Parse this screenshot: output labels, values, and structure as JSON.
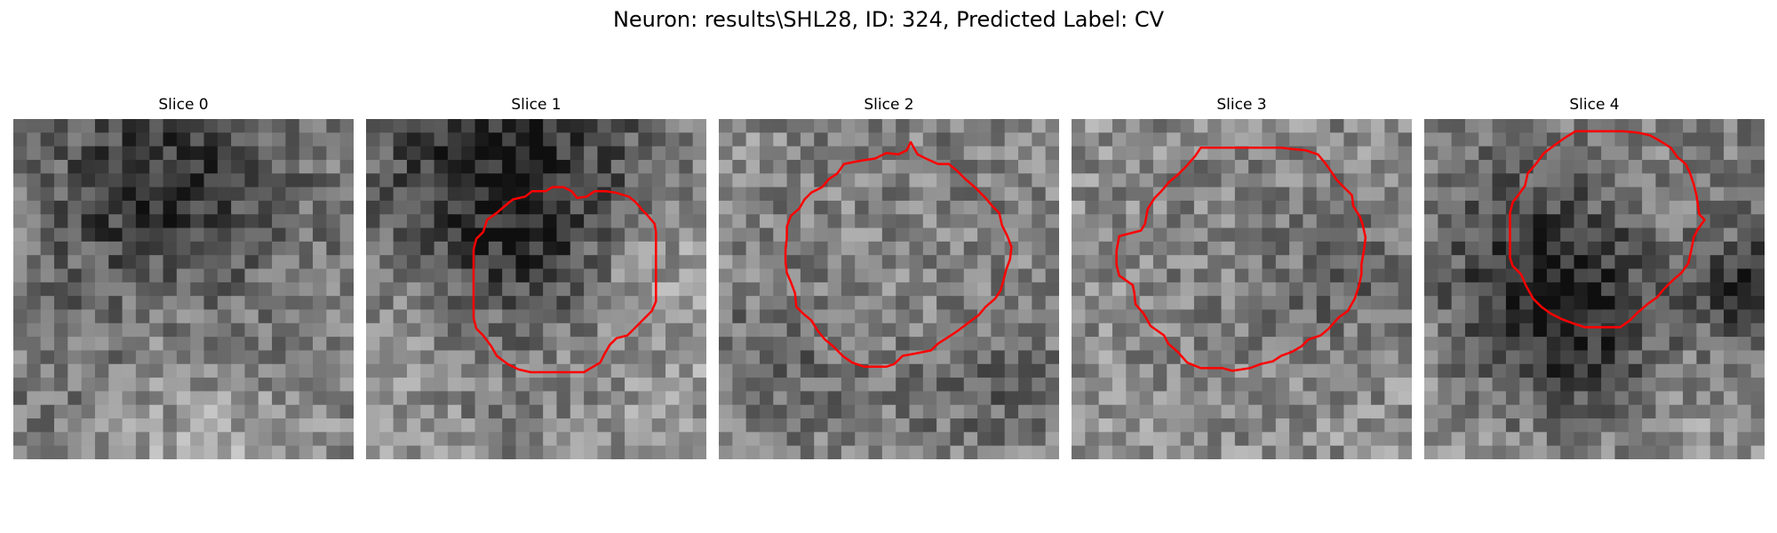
{
  "figure": {
    "title": "Neuron: results\\SHL28, ID: 324, Predicted Label: CV"
  },
  "panels": [
    {
      "title": "Slice 0",
      "dark_blobs": [],
      "contour": []
    },
    {
      "title": "Slice 1",
      "dark_blobs": [],
      "contour": [
        [
          15.5,
          5.8
        ],
        [
          15.1,
          5.3
        ],
        [
          14.5,
          5.0
        ],
        [
          13.7,
          5.0
        ],
        [
          13.2,
          5.3
        ],
        [
          12.2,
          5.3
        ],
        [
          11.7,
          5.7
        ],
        [
          10.8,
          5.9
        ],
        [
          10.3,
          6.3
        ],
        [
          9.6,
          6.9
        ],
        [
          8.9,
          7.4
        ],
        [
          8.6,
          8.3
        ],
        [
          8.1,
          8.8
        ],
        [
          7.9,
          9.6
        ],
        [
          7.9,
          10.5
        ],
        [
          7.9,
          11.3
        ],
        [
          7.9,
          12.6
        ],
        [
          7.9,
          14.1
        ],
        [
          7.9,
          14.6
        ],
        [
          8.1,
          15.4
        ],
        [
          8.6,
          15.9
        ],
        [
          9.2,
          16.7
        ],
        [
          9.6,
          17.4
        ],
        [
          10.4,
          18.0
        ],
        [
          11.2,
          18.4
        ],
        [
          12.1,
          18.6
        ],
        [
          13.1,
          18.6
        ],
        [
          14.1,
          18.6
        ],
        [
          15.0,
          18.6
        ],
        [
          16.0,
          18.6
        ],
        [
          16.5,
          18.3
        ],
        [
          17.2,
          17.9
        ],
        [
          17.5,
          17.3
        ],
        [
          17.9,
          16.6
        ],
        [
          18.4,
          16.1
        ],
        [
          19.2,
          15.9
        ],
        [
          19.6,
          15.5
        ],
        [
          20.3,
          14.8
        ],
        [
          21.0,
          14.1
        ],
        [
          21.3,
          13.4
        ],
        [
          21.3,
          12.4
        ],
        [
          21.3,
          11.4
        ],
        [
          21.3,
          10.4
        ],
        [
          21.3,
          9.4
        ],
        [
          21.3,
          8.3
        ],
        [
          21.2,
          7.7
        ],
        [
          20.7,
          7.1
        ],
        [
          20.3,
          6.7
        ],
        [
          19.8,
          6.1
        ],
        [
          19.3,
          5.7
        ],
        [
          18.3,
          5.4
        ],
        [
          17.6,
          5.3
        ],
        [
          16.8,
          5.3
        ],
        [
          16.2,
          5.7
        ]
      ]
    },
    {
      "title": "Slice 2",
      "dark_blobs": [],
      "contour": [
        [
          14.1,
          1.7
        ],
        [
          13.8,
          2.3
        ],
        [
          13.2,
          2.6
        ],
        [
          12.3,
          2.5
        ],
        [
          11.5,
          2.9
        ],
        [
          10.2,
          3.1
        ],
        [
          9.2,
          3.3
        ],
        [
          8.7,
          4.0
        ],
        [
          8.1,
          4.4
        ],
        [
          7.6,
          5.0
        ],
        [
          6.8,
          5.4
        ],
        [
          6.3,
          5.9
        ],
        [
          5.9,
          6.6
        ],
        [
          5.3,
          7.1
        ],
        [
          5.0,
          7.9
        ],
        [
          5.0,
          8.7
        ],
        [
          4.9,
          9.6
        ],
        [
          4.9,
          10.5
        ],
        [
          5.0,
          11.3
        ],
        [
          5.3,
          12.0
        ],
        [
          5.6,
          12.8
        ],
        [
          5.7,
          13.8
        ],
        [
          6.2,
          14.3
        ],
        [
          6.8,
          14.8
        ],
        [
          7.3,
          15.6
        ],
        [
          7.8,
          16.2
        ],
        [
          8.4,
          16.7
        ],
        [
          9.1,
          17.4
        ],
        [
          9.8,
          17.9
        ],
        [
          10.7,
          18.2
        ],
        [
          11.6,
          18.2
        ],
        [
          12.3,
          18.2
        ],
        [
          12.9,
          18.0
        ],
        [
          13.5,
          17.4
        ],
        [
          14.6,
          17.2
        ],
        [
          15.6,
          17.0
        ],
        [
          16.1,
          16.5
        ],
        [
          16.9,
          16.0
        ],
        [
          17.5,
          15.6
        ],
        [
          18.3,
          15.0
        ],
        [
          19.1,
          14.4
        ],
        [
          19.6,
          13.8
        ],
        [
          20.3,
          13.2
        ],
        [
          20.7,
          12.6
        ],
        [
          20.9,
          11.9
        ],
        [
          21.1,
          11.1
        ],
        [
          21.4,
          10.3
        ],
        [
          21.5,
          9.4
        ],
        [
          21.2,
          8.6
        ],
        [
          20.8,
          7.8
        ],
        [
          20.6,
          6.9
        ],
        [
          20.1,
          6.4
        ],
        [
          19.6,
          5.8
        ],
        [
          18.8,
          5.0
        ],
        [
          18.1,
          4.4
        ],
        [
          17.5,
          3.8
        ],
        [
          16.9,
          3.3
        ],
        [
          16.1,
          3.3
        ],
        [
          15.2,
          2.9
        ],
        [
          14.6,
          2.6
        ]
      ]
    },
    {
      "title": "Slice 3",
      "dark_blobs": [],
      "contour": [
        [
          8.5,
          3.4
        ],
        [
          7.8,
          4.1
        ],
        [
          7.2,
          4.6
        ],
        [
          6.6,
          5.3
        ],
        [
          6.1,
          5.8
        ],
        [
          5.6,
          6.6
        ],
        [
          5.4,
          7.7
        ],
        [
          5.1,
          8.2
        ],
        [
          3.5,
          8.6
        ],
        [
          3.3,
          9.7
        ],
        [
          3.3,
          10.7
        ],
        [
          3.5,
          11.5
        ],
        [
          4.5,
          12.2
        ],
        [
          4.6,
          12.7
        ],
        [
          4.7,
          13.6
        ],
        [
          5.3,
          14.3
        ],
        [
          5.8,
          15.2
        ],
        [
          6.8,
          15.9
        ],
        [
          7.1,
          16.5
        ],
        [
          7.8,
          17.1
        ],
        [
          8.5,
          17.9
        ],
        [
          9.5,
          18.3
        ],
        [
          10.4,
          18.3
        ],
        [
          11.1,
          18.3
        ],
        [
          11.8,
          18.5
        ],
        [
          13.1,
          18.3
        ],
        [
          13.9,
          18.0
        ],
        [
          14.8,
          17.8
        ],
        [
          15.4,
          17.4
        ],
        [
          16.2,
          17.1
        ],
        [
          16.9,
          16.7
        ],
        [
          17.4,
          16.2
        ],
        [
          18.3,
          15.9
        ],
        [
          18.9,
          15.4
        ],
        [
          19.6,
          14.6
        ],
        [
          20.3,
          14.1
        ],
        [
          20.8,
          13.2
        ],
        [
          21.1,
          12.3
        ],
        [
          21.3,
          11.4
        ],
        [
          21.3,
          10.7
        ],
        [
          21.5,
          9.5
        ],
        [
          21.6,
          8.7
        ],
        [
          21.4,
          7.8
        ],
        [
          21.2,
          7.2
        ],
        [
          20.7,
          6.4
        ],
        [
          20.6,
          5.6
        ],
        [
          20.1,
          5.1
        ],
        [
          19.5,
          4.5
        ],
        [
          19.1,
          3.9
        ],
        [
          18.6,
          3.2
        ],
        [
          18.1,
          2.6
        ],
        [
          17.2,
          2.3
        ],
        [
          16.2,
          2.2
        ],
        [
          15.4,
          2.1
        ],
        [
          14.6,
          2.1
        ],
        [
          13.7,
          2.1
        ],
        [
          12.9,
          2.1
        ],
        [
          12.1,
          2.1
        ],
        [
          11.3,
          2.1
        ],
        [
          10.5,
          2.1
        ],
        [
          9.5,
          2.1
        ],
        [
          9.1,
          2.7
        ]
      ]
    },
    {
      "title": "Slice 4",
      "dark_blobs": [],
      "contour": [
        [
          10.3,
          1.4
        ],
        [
          9.6,
          1.9
        ],
        [
          8.8,
          2.5
        ],
        [
          8.2,
          3.3
        ],
        [
          7.6,
          4.0
        ],
        [
          7.4,
          4.9
        ],
        [
          6.9,
          5.6
        ],
        [
          6.5,
          6.1
        ],
        [
          6.3,
          6.9
        ],
        [
          6.3,
          7.8
        ],
        [
          6.3,
          8.6
        ],
        [
          6.3,
          9.3
        ],
        [
          6.3,
          10.2
        ],
        [
          6.5,
          10.8
        ],
        [
          7.1,
          11.4
        ],
        [
          7.5,
          12.3
        ],
        [
          8.0,
          13.2
        ],
        [
          8.6,
          13.8
        ],
        [
          9.3,
          14.3
        ],
        [
          10.1,
          14.7
        ],
        [
          10.9,
          15.0
        ],
        [
          11.8,
          15.3
        ],
        [
          12.7,
          15.3
        ],
        [
          13.6,
          15.3
        ],
        [
          14.4,
          15.3
        ],
        [
          15.1,
          14.8
        ],
        [
          15.7,
          14.2
        ],
        [
          16.4,
          13.6
        ],
        [
          17.1,
          13.1
        ],
        [
          17.6,
          12.5
        ],
        [
          18.3,
          11.8
        ],
        [
          18.9,
          11.3
        ],
        [
          19.4,
          10.6
        ],
        [
          19.6,
          9.7
        ],
        [
          19.8,
          8.7
        ],
        [
          20.1,
          8.1
        ],
        [
          20.6,
          7.4
        ],
        [
          20.2,
          7.0
        ],
        [
          20.1,
          6.3
        ],
        [
          20.0,
          5.6
        ],
        [
          19.8,
          4.8
        ],
        [
          19.5,
          3.9
        ],
        [
          19.2,
          3.3
        ],
        [
          18.6,
          2.8
        ],
        [
          18.1,
          2.1
        ],
        [
          17.3,
          1.6
        ],
        [
          16.6,
          1.2
        ],
        [
          15.7,
          1.0
        ],
        [
          14.6,
          0.9
        ],
        [
          13.6,
          0.9
        ],
        [
          12.6,
          0.9
        ],
        [
          11.8,
          0.9
        ],
        [
          11.1,
          0.9
        ]
      ]
    }
  ],
  "colors": {
    "contour": "#ff0000",
    "background": "#ffffff"
  }
}
